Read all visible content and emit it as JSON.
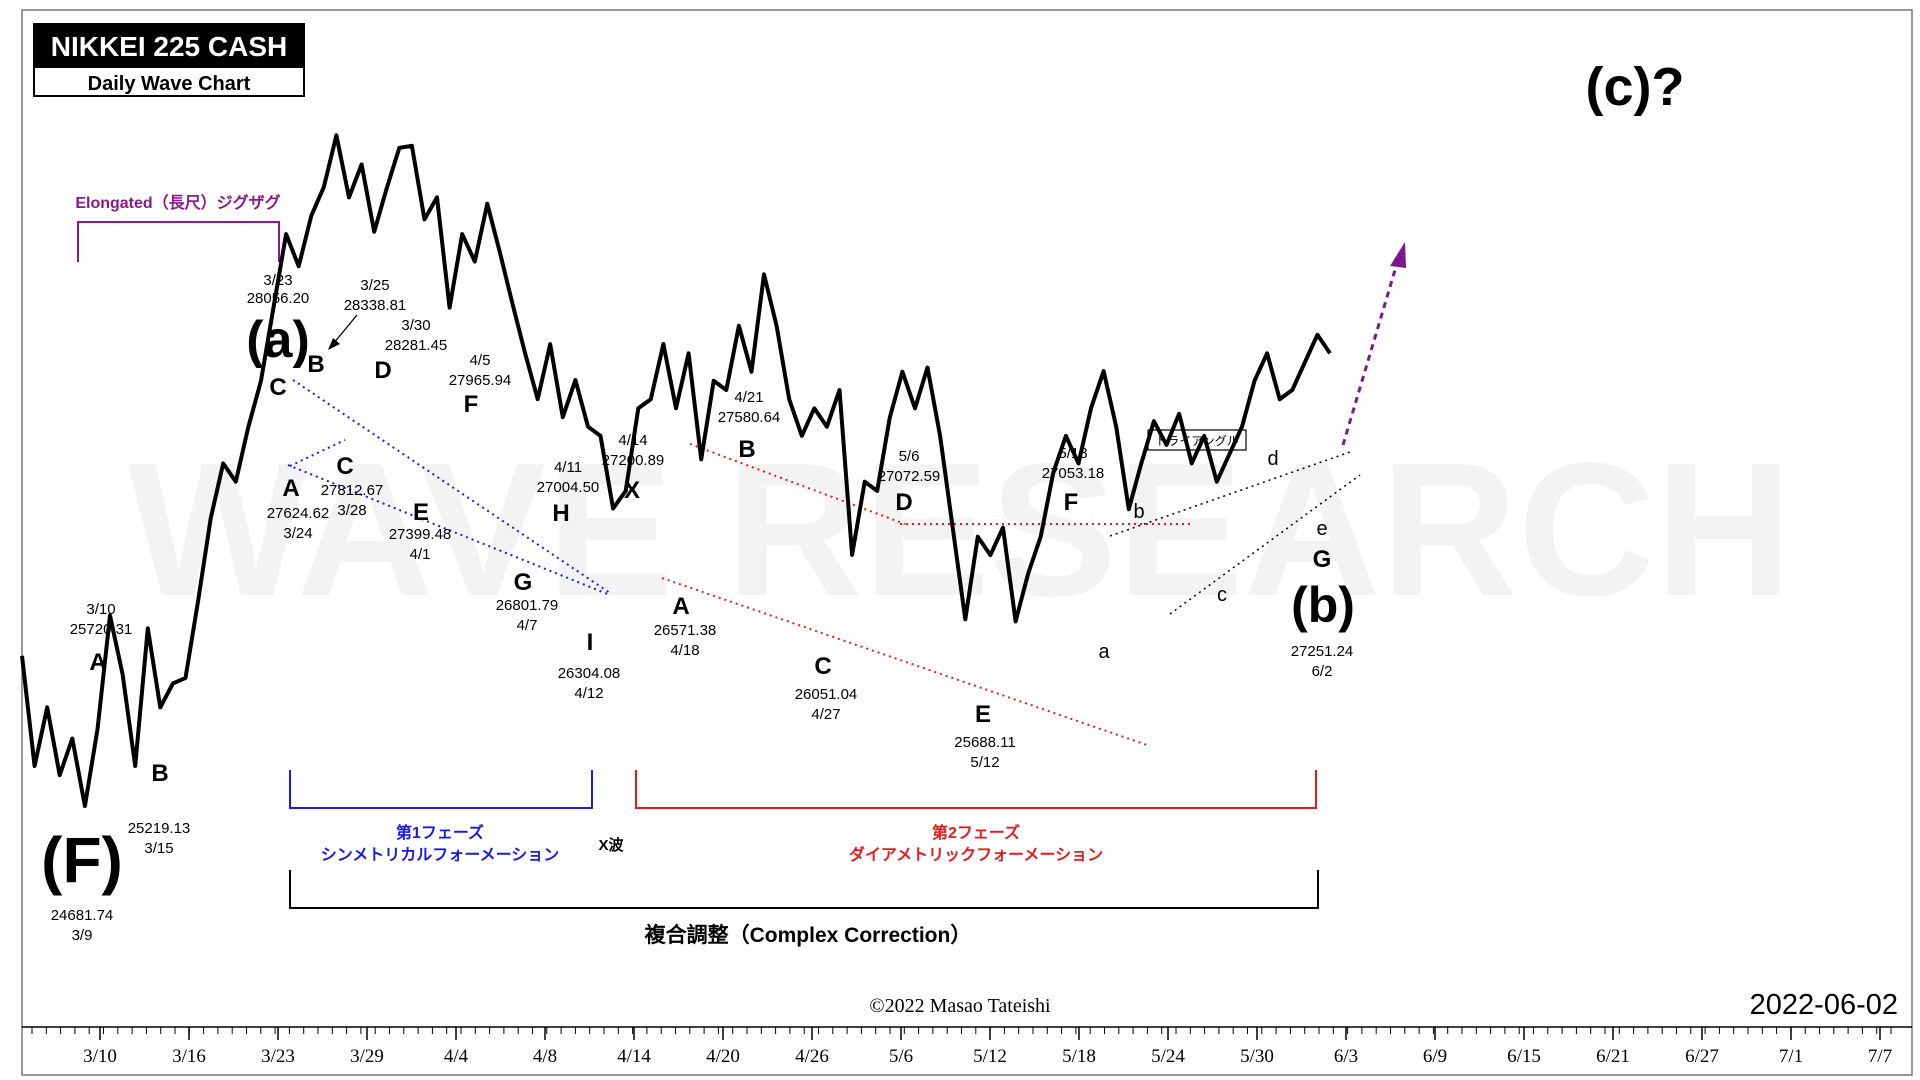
{
  "chart_data": {
    "type": "line",
    "title": "NIKKEI 225 CASH",
    "subtitle": "Daily Wave Chart",
    "projection_label": "(c)?",
    "watermark": "WAVE RESEARCH",
    "copyright": "©2022 Masao Tateishi",
    "date_stamp": "2022-06-02",
    "x_ticks": [
      "3/10",
      "3/16",
      "3/23",
      "3/29",
      "4/4",
      "4/8",
      "4/14",
      "4/20",
      "4/26",
      "5/6",
      "5/12",
      "5/18",
      "5/24",
      "5/30",
      "6/3",
      "6/9",
      "6/15",
      "6/21",
      "6/27",
      "7/1",
      "7/7"
    ],
    "series": [
      {
        "values": [
          25500,
          24900,
          25220,
          24850,
          25050,
          24681.74,
          25100,
          25720.31,
          25400,
          24900,
          25650,
          25219.13,
          25350,
          25380,
          25800,
          26250,
          26550,
          26450,
          26750,
          27000,
          27400,
          27800,
          27624.62,
          27900,
          28056.2,
          28338.81,
          28000,
          28180,
          27812.67,
          28050,
          28270,
          28281.45,
          27880,
          28000,
          27399.48,
          27800,
          27650,
          27965.94,
          27700,
          27420,
          27150,
          26900,
          27200,
          26801.79,
          27004.5,
          26750,
          26700,
          26304.08,
          26400,
          26850,
          26900,
          27200.89,
          26850,
          27150,
          26571.38,
          27000,
          26950,
          27300,
          27050,
          27580.64,
          27300,
          26900,
          26700,
          26850,
          26750,
          26950,
          26051.04,
          26450,
          26400,
          26800,
          27050,
          26850,
          27072.59,
          26700,
          26200,
          25700,
          26150,
          26050,
          26200,
          25688.11,
          25950,
          26150,
          26500,
          26700,
          26550,
          26850,
          27053.18,
          26750,
          26300,
          26550,
          26780,
          26650,
          26820,
          26550,
          26700,
          26450,
          26600,
          26750,
          27000,
          27150,
          26900,
          26950,
          27100,
          27251.24,
          27150
        ]
      }
    ],
    "wave_labels": [
      {
        "label": "(F)",
        "price": "24681.74",
        "date": "3/9"
      },
      {
        "label": "A",
        "price": "25720.31",
        "date": "3/10"
      },
      {
        "label": "B",
        "price": "25219.13",
        "date": "3/15"
      },
      {
        "label": "(a)"
      },
      {
        "label": "C"
      },
      {
        "label": "A",
        "price": "27624.62",
        "date": "3/24"
      },
      {
        "label": "B",
        "price": "28338.81",
        "date": "3/25"
      },
      {
        "label": "C",
        "price": "27812.67",
        "date": "3/28"
      },
      {
        "label": "D",
        "price": "28281.45",
        "date": "3/30"
      },
      {
        "label": "E",
        "price": "27399.48",
        "date": "4/1"
      },
      {
        "label": "F",
        "price": "27965.94",
        "date": "4/5"
      },
      {
        "label": "G",
        "price": "26801.79",
        "date": "4/7"
      },
      {
        "label": "H",
        "price": "27004.50",
        "date": "4/11"
      },
      {
        "label": "I",
        "price": "26304.08",
        "date": "4/12"
      },
      {
        "label": "X",
        "price": "27200.89",
        "date": "4/14"
      },
      {
        "label": "A",
        "price": "26571.38",
        "date": "4/18"
      },
      {
        "label": "B",
        "price": "27580.64",
        "date": "4/21"
      },
      {
        "label": "C",
        "price": "26051.04",
        "date": "4/27"
      },
      {
        "label": "D",
        "price": "27072.59",
        "date": "5/6"
      },
      {
        "label": "E",
        "price": "25688.11",
        "date": "5/12"
      },
      {
        "label": "F",
        "price": "27053.18",
        "date": "5/18"
      },
      {
        "label": "a"
      },
      {
        "label": "b"
      },
      {
        "label": "c"
      },
      {
        "label": "d"
      },
      {
        "label": "e"
      },
      {
        "label": "G"
      },
      {
        "label": "(b)",
        "price": "27251.24",
        "date": "6/2"
      }
    ],
    "top_left_price": "28056.20",
    "top_left_date": "3/23",
    "annotations": {
      "elongated": "Elongated（長尺）ジグザグ",
      "triangle": "トライアングル",
      "phase1_line1": "第1フェーズ",
      "phase1_line2": "シンメトリカルフォーメーション",
      "x_wave": "X波",
      "phase2_line1": "第2フェーズ",
      "phase2_line2": "ダイアメトリックフォーメーション",
      "complex": "複合調整（Complex Correction）"
    },
    "colors": {
      "line": "#000000",
      "phase1": "#1a1ae6",
      "phase2": "#e61a1a",
      "elongated": "#8a1a8a",
      "projection": "#7a1a8a"
    },
    "grid": false,
    "legend": "none"
  }
}
